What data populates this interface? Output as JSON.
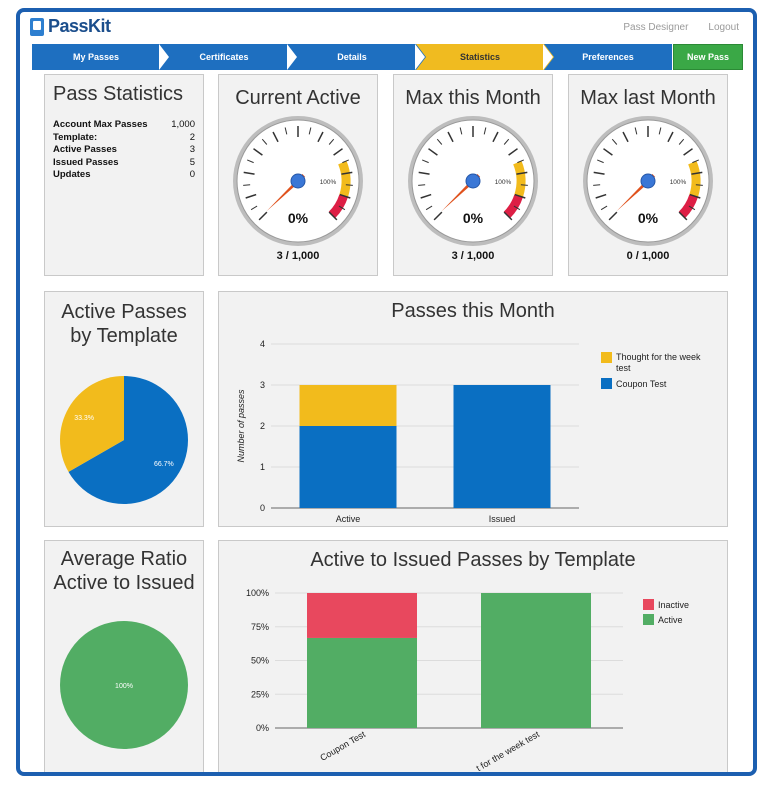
{
  "header": {
    "logo_text": "PassKit",
    "links": [
      "Pass Designer",
      "Logout"
    ]
  },
  "nav": {
    "steps": [
      {
        "label": "My Passes",
        "active": false
      },
      {
        "label": "Certificates",
        "active": false
      },
      {
        "label": "Details",
        "active": false
      },
      {
        "label": "Statistics",
        "active": true
      },
      {
        "label": "Preferences",
        "active": false
      }
    ],
    "new_pass": "New Pass"
  },
  "pass_statistics": {
    "title": "Pass Statistics",
    "rows": [
      {
        "label": "Account Max Passes",
        "value": "1,000"
      },
      {
        "label": "Template:",
        "value": "2"
      },
      {
        "label": "Active Passes",
        "value": "3"
      },
      {
        "label": "Issued Passes",
        "value": "5"
      },
      {
        "label": "Updates",
        "value": "0"
      }
    ]
  },
  "gauges": [
    {
      "title": "Current Active",
      "percent_label": "0%",
      "scale_label": "100%",
      "caption": "3 / 1,000",
      "value_pct": 0
    },
    {
      "title": "Max this Month",
      "percent_label": "0%",
      "scale_label": "100%",
      "caption": "3 / 1,000",
      "value_pct": 0
    },
    {
      "title": "Max last Month",
      "percent_label": "0%",
      "scale_label": "100%",
      "caption": "0 / 1,000",
      "value_pct": 0
    }
  ],
  "active_by_template": {
    "title_line1": "Active Passes",
    "title_line2": "by Template",
    "chart_data": {
      "type": "pie",
      "slices": [
        {
          "label": "33.3%",
          "value": 33.3,
          "color": "#f2bb1c"
        },
        {
          "label": "66.7%",
          "value": 66.7,
          "color": "#0a6fc2"
        }
      ]
    }
  },
  "passes_this_month": {
    "title": "Passes this Month",
    "chart_data": {
      "type": "bar",
      "stacked": true,
      "categories": [
        "Active",
        "Issued"
      ],
      "series": [
        {
          "name": "Coupon Test",
          "values": [
            2,
            3
          ],
          "color": "#0a6fc2"
        },
        {
          "name": "Thought for the week test",
          "values": [
            1,
            0
          ],
          "color": "#f2bb1c"
        }
      ],
      "ylabel": "Number of passes",
      "ylim": [
        0,
        4
      ],
      "yticks": [
        "0",
        "1",
        "2",
        "3",
        "4"
      ],
      "legend": [
        "Thought for the week",
        "test",
        "Coupon Test"
      ]
    }
  },
  "average_ratio": {
    "title_line1": "Average Ratio",
    "title_line2": "Active to Issued",
    "chart_data": {
      "type": "pie",
      "slices": [
        {
          "label": "100%",
          "value": 100,
          "color": "#52ad64"
        }
      ]
    }
  },
  "active_to_issued": {
    "title": "Active to Issued Passes by Template",
    "chart_data": {
      "type": "bar",
      "stacked": true,
      "categories": [
        "Coupon Test",
        "Thought for the week test"
      ],
      "category_labels": [
        "Coupon Test",
        "t for the week test"
      ],
      "series": [
        {
          "name": "Active",
          "values": [
            66.7,
            100
          ],
          "color": "#52ad64"
        },
        {
          "name": "Inactive",
          "values": [
            33.3,
            0
          ],
          "color": "#e8485e"
        }
      ],
      "ylim": [
        0,
        100
      ],
      "yticks": [
        "0%",
        "25%",
        "50%",
        "75%",
        "100%"
      ],
      "legend": [
        "Inactive",
        "Active"
      ]
    }
  }
}
